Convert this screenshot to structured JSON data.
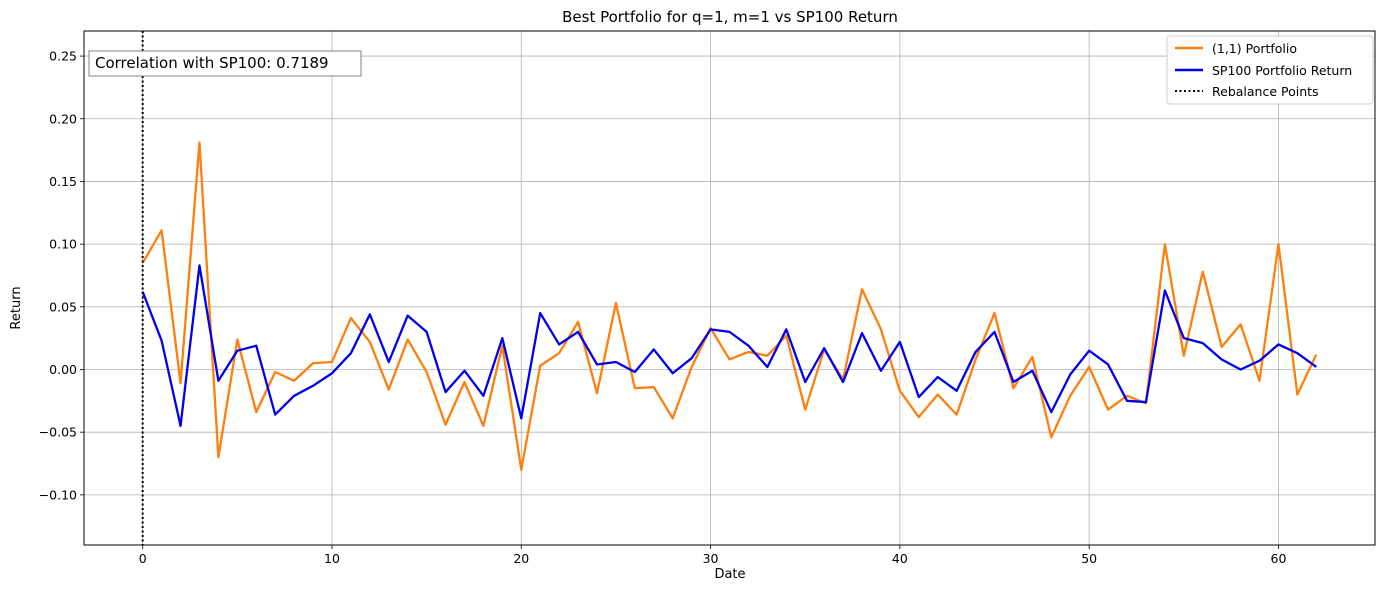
{
  "chart_data": {
    "type": "line",
    "title": "Best Portfolio for q=1, m=1 vs SP100 Return",
    "xlabel": "Date",
    "ylabel": "Return",
    "xlim": [
      -3.1,
      65.1
    ],
    "ylim": [
      -0.14,
      0.27
    ],
    "xticks": [
      0,
      10,
      20,
      30,
      40,
      50,
      60
    ],
    "xtick_labels": [
      "0",
      "10",
      "20",
      "30",
      "40",
      "50",
      "60"
    ],
    "yticks": [
      -0.1,
      -0.05,
      0.0,
      0.05,
      0.1,
      0.15,
      0.2,
      0.25
    ],
    "ytick_labels": [
      "−0.10",
      "−0.05",
      "0.00",
      "0.05",
      "0.10",
      "0.15",
      "0.20",
      "0.25"
    ],
    "grid": true,
    "legend_position": "top-right",
    "rebalance_points": [
      0
    ],
    "rebalance_label": "Rebalance Points",
    "annotation": "Correlation with SP100: 0.7189",
    "series": [
      {
        "name": "(1,1) Portfolio",
        "color": "#ff7f0e",
        "values": [
          0.085,
          0.111,
          -0.011,
          0.181,
          -0.07,
          0.024,
          -0.034,
          -0.002,
          -0.009,
          0.005,
          0.006,
          0.041,
          0.022,
          -0.016,
          0.024,
          -0.002,
          -0.044,
          -0.01,
          -0.045,
          0.019,
          -0.08,
          0.003,
          0.013,
          0.038,
          -0.019,
          0.053,
          -0.015,
          -0.014,
          -0.039,
          0.002,
          0.033,
          0.008,
          0.014,
          0.011,
          0.027,
          -0.032,
          0.016,
          -0.008,
          0.064,
          0.032,
          -0.017,
          -0.038,
          -0.02,
          -0.036,
          0.008,
          0.045,
          -0.015,
          0.01,
          -0.054,
          -0.021,
          0.002,
          -0.032,
          -0.021,
          -0.027,
          0.1,
          0.011,
          0.078,
          0.018,
          0.036,
          -0.009,
          0.1,
          -0.02,
          0.012
        ]
      },
      {
        "name": "SP100 Portfolio Return",
        "color": "#0000ee",
        "values": [
          0.062,
          0.023,
          -0.045,
          0.083,
          -0.009,
          0.015,
          0.019,
          -0.036,
          -0.021,
          -0.013,
          -0.003,
          0.013,
          0.044,
          0.006,
          0.043,
          0.03,
          -0.018,
          -0.001,
          -0.021,
          0.025,
          -0.039,
          0.045,
          0.02,
          0.03,
          0.004,
          0.006,
          -0.002,
          0.016,
          -0.003,
          0.009,
          0.032,
          0.03,
          0.019,
          0.002,
          0.032,
          -0.01,
          0.017,
          -0.01,
          0.029,
          -0.001,
          0.022,
          -0.022,
          -0.006,
          -0.017,
          0.014,
          0.03,
          -0.01,
          -0.001,
          -0.034,
          -0.004,
          0.015,
          0.004,
          -0.025,
          -0.026,
          0.063,
          0.025,
          0.021,
          0.008,
          0.0,
          0.007,
          0.02,
          0.013,
          0.002
        ]
      }
    ]
  }
}
